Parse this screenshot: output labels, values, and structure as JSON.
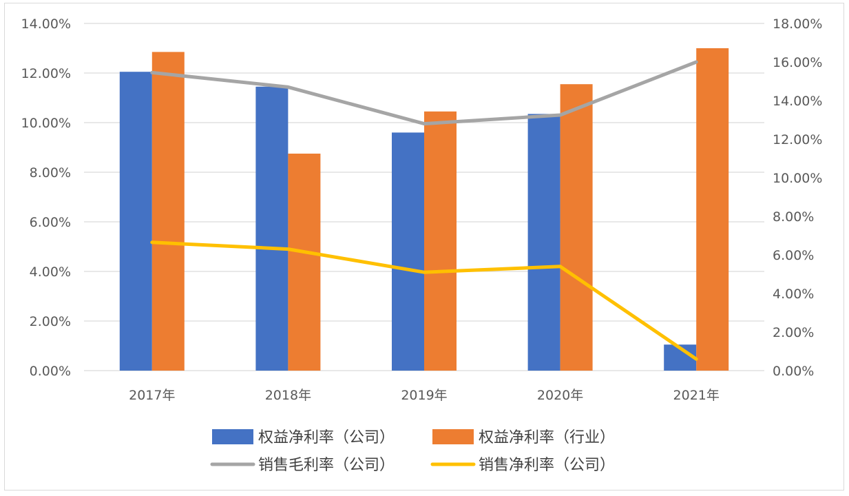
{
  "chart_data": {
    "type": "bar",
    "title": "",
    "categories": [
      "2017年",
      "2018年",
      "2019年",
      "2020年",
      "2021年"
    ],
    "left_axis": {
      "ylim": [
        0,
        14
      ],
      "ticks": [
        0,
        2,
        4,
        6,
        8,
        10,
        12,
        14
      ],
      "tick_labels": [
        "0.00%",
        "2.00%",
        "4.00%",
        "6.00%",
        "8.00%",
        "10.00%",
        "12.00%",
        "14.00%"
      ]
    },
    "right_axis": {
      "ylim": [
        0,
        18
      ],
      "ticks": [
        0,
        2,
        4,
        6,
        8,
        10,
        12,
        14,
        16,
        18
      ],
      "tick_labels": [
        "0.00%",
        "2.00%",
        "4.00%",
        "6.00%",
        "8.00%",
        "10.00%",
        "12.00%",
        "14.00%",
        "16.00%",
        "18.00%"
      ]
    },
    "grid": true,
    "legend_position": "bottom",
    "series": [
      {
        "name": "权益净利率（公司）",
        "kind": "bar",
        "axis": "left",
        "color": "#4472C4",
        "values": [
          12.05,
          11.45,
          9.6,
          10.35,
          1.05
        ]
      },
      {
        "name": "权益净利率（行业）",
        "kind": "bar",
        "axis": "left",
        "color": "#ED7D31",
        "values": [
          12.85,
          8.75,
          10.45,
          11.55,
          13.0
        ]
      },
      {
        "name": "销售毛利率（公司）",
        "kind": "line",
        "axis": "right",
        "color": "#A5A5A5",
        "values": [
          15.45,
          14.7,
          12.8,
          13.25,
          16.0
        ]
      },
      {
        "name": "销售净利率（公司）",
        "kind": "line",
        "axis": "right",
        "color": "#FFC000",
        "values": [
          6.65,
          6.3,
          5.1,
          5.4,
          0.6
        ]
      }
    ]
  }
}
